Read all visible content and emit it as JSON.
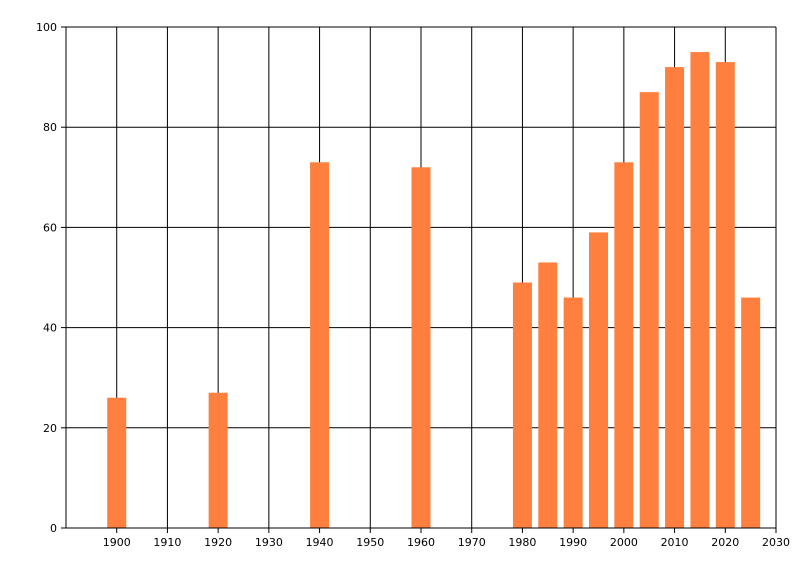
{
  "chart_data": {
    "type": "bar",
    "title": "",
    "xlabel": "",
    "ylabel": "",
    "x": [
      1900,
      1920,
      1940,
      1960,
      1980,
      1985,
      1990,
      1995,
      2000,
      2005,
      2010,
      2015,
      2020,
      2025
    ],
    "values": [
      26,
      27,
      73,
      72,
      49,
      53,
      46,
      59,
      73,
      87,
      92,
      95,
      93,
      46
    ],
    "xlim": [
      1890,
      2030
    ],
    "ylim": [
      0,
      100
    ],
    "x_ticks": [
      "1900",
      "1910",
      "1920",
      "1930",
      "1940",
      "1950",
      "1960",
      "1970",
      "1980",
      "1990",
      "2000",
      "2010",
      "2020",
      "2030"
    ],
    "y_ticks": [
      "0",
      "20",
      "40",
      "60",
      "80",
      "100"
    ],
    "grid": true,
    "bar_color": "#ff7f3f"
  }
}
